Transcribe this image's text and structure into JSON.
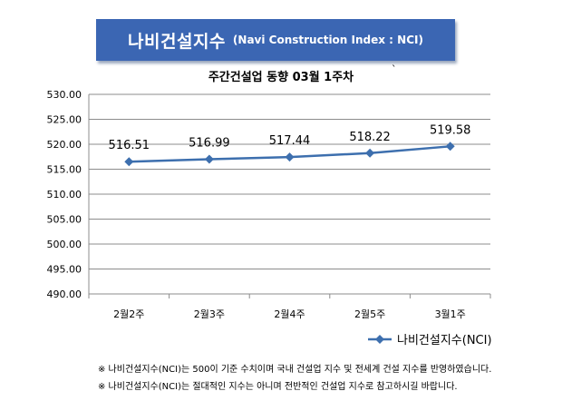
{
  "banner": {
    "title_ko": "나비건설지수",
    "title_en": "(Navi Construction Index : NCI)"
  },
  "subtitle": "주간건설업 동향 03월 1주차",
  "stray_mark": "`",
  "chart_data": {
    "type": "line",
    "categories": [
      "2월2주",
      "2월3주",
      "2월4주",
      "2월5주",
      "3월1주"
    ],
    "series": [
      {
        "name": "나비건설지수(NCI)",
        "values": [
          516.51,
          516.99,
          517.44,
          518.22,
          519.58
        ]
      }
    ],
    "data_labels": [
      "516.51",
      "516.99",
      "517.44",
      "518.22",
      "519.58"
    ],
    "ylim": [
      490,
      530
    ],
    "yticks": [
      "490.00",
      "495.00",
      "500.00",
      "505.00",
      "510.00",
      "515.00",
      "520.00",
      "525.00",
      "530.00"
    ],
    "grid": true,
    "legend": "bottom-right",
    "line_color": "#3d6fae"
  },
  "footnotes": [
    "※ 나비건설지수(NCI)는 500이 기준 수치이며 국내 건설업 지수 및 전세계 건설 지수를 반영하였습니다.",
    "※ 나비건설지수(NCI)는 절대적인 지수는 아니며 전반적인 건설업 지수로 참고하시길 바랍니다."
  ]
}
